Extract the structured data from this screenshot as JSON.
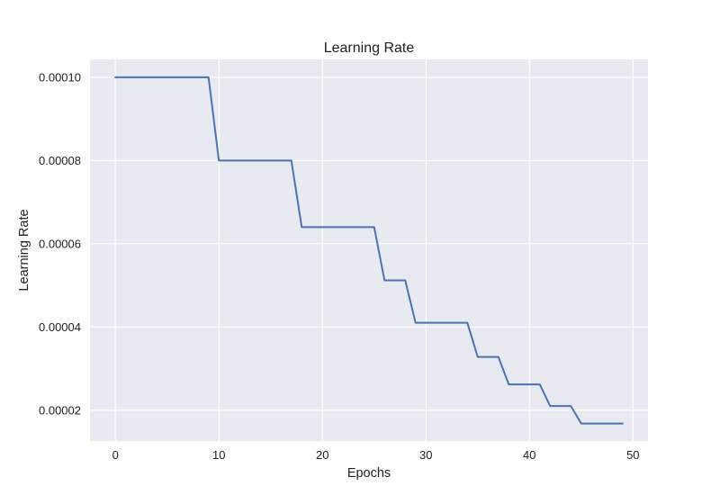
{
  "chart_data": {
    "type": "line",
    "title": "Learning Rate",
    "xlabel": "Epochs",
    "ylabel": "Learning Rate",
    "xlim": [
      -2.45,
      51.45
    ],
    "ylim": [
      1.26e-05,
      0.0001043
    ],
    "grid": true,
    "x_ticks": [
      {
        "value": 0,
        "label": "0"
      },
      {
        "value": 10,
        "label": "10"
      },
      {
        "value": 20,
        "label": "20"
      },
      {
        "value": 30,
        "label": "30"
      },
      {
        "value": 40,
        "label": "40"
      },
      {
        "value": 50,
        "label": "50"
      }
    ],
    "y_ticks": [
      {
        "value": 2e-05,
        "label": "0.00002"
      },
      {
        "value": 4e-05,
        "label": "0.00004"
      },
      {
        "value": 6e-05,
        "label": "0.00006"
      },
      {
        "value": 8e-05,
        "label": "0.00008"
      },
      {
        "value": 0.0001,
        "label": "0.00010"
      }
    ],
    "colors": {
      "series": "#4c72b0",
      "plot_background": "#e9e9f1",
      "grid": "#ffffff"
    },
    "series": [
      {
        "x": [
          0,
          1,
          2,
          3,
          4,
          5,
          6,
          7,
          8,
          9,
          10,
          11,
          12,
          13,
          14,
          15,
          16,
          17,
          18,
          19,
          20,
          21,
          22,
          23,
          24,
          25,
          26,
          27,
          28,
          29,
          30,
          31,
          32,
          33,
          34,
          35,
          36,
          37,
          38,
          39,
          40,
          41,
          42,
          43,
          44,
          45,
          46,
          47,
          48,
          49
        ],
        "y": [
          0.0001,
          0.0001,
          0.0001,
          0.0001,
          0.0001,
          0.0001,
          0.0001,
          0.0001,
          0.0001,
          0.0001,
          8e-05,
          8e-05,
          8e-05,
          8e-05,
          8e-05,
          8e-05,
          8e-05,
          8e-05,
          6.4e-05,
          6.4e-05,
          6.4e-05,
          6.4e-05,
          6.4e-05,
          6.4e-05,
          6.4e-05,
          6.4e-05,
          5.12e-05,
          5.12e-05,
          5.12e-05,
          4.1e-05,
          4.1e-05,
          4.1e-05,
          4.1e-05,
          4.1e-05,
          4.1e-05,
          3.28e-05,
          3.28e-05,
          3.28e-05,
          2.62e-05,
          2.62e-05,
          2.62e-05,
          2.62e-05,
          2.1e-05,
          2.1e-05,
          2.1e-05,
          1.68e-05,
          1.68e-05,
          1.68e-05,
          1.68e-05,
          1.68e-05
        ]
      }
    ]
  }
}
